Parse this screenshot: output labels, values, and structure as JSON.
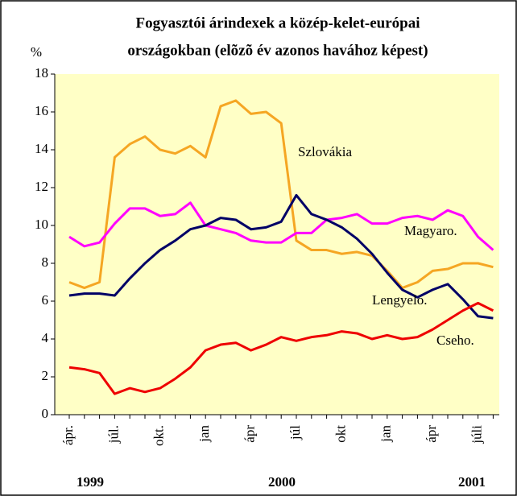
{
  "chart_data": {
    "type": "line",
    "title": [
      "Fogyasztói árindexek a közép-kelet-európai",
      "országokban (elõzõ év azonos havához képest)"
    ],
    "y_label": "%",
    "categories": [
      "ápr.",
      null,
      null,
      "júl.",
      null,
      null,
      "okt.",
      null,
      null,
      "jan",
      null,
      null,
      "ápr",
      null,
      null,
      "júl",
      null,
      null,
      "okt",
      null,
      null,
      "jan",
      null,
      null,
      "ápr",
      null,
      null,
      "júli",
      null
    ],
    "year_labels": [
      "1999",
      "2000",
      "2001"
    ],
    "ylim": [
      0,
      18
    ],
    "yticks": [
      0,
      2,
      4,
      6,
      8,
      10,
      12,
      14,
      16,
      18
    ],
    "series": [
      {
        "name": "Szlovákia",
        "color": "#f5a623",
        "values": [
          7.0,
          6.7,
          7.0,
          13.6,
          14.3,
          14.7,
          14.0,
          13.8,
          14.2,
          13.6,
          16.3,
          16.6,
          15.9,
          16.0,
          15.4,
          9.2,
          8.7,
          8.7,
          8.5,
          8.6,
          8.4,
          7.6,
          6.7,
          7.0,
          7.6,
          7.7,
          8.0,
          8.0,
          7.8
        ]
      },
      {
        "name": "Magyaro.",
        "color": "#ff00ff",
        "values": [
          9.4,
          8.9,
          9.1,
          10.1,
          10.9,
          10.9,
          10.5,
          10.6,
          11.2,
          10.0,
          9.8,
          9.6,
          9.2,
          9.1,
          9.1,
          9.6,
          9.6,
          10.3,
          10.4,
          10.6,
          10.1,
          10.1,
          10.4,
          10.5,
          10.3,
          10.8,
          10.5,
          9.4,
          8.7
        ]
      },
      {
        "name": "Lengyelo.",
        "color": "#000066",
        "values": [
          6.3,
          6.4,
          6.4,
          6.3,
          7.2,
          8.0,
          8.7,
          9.2,
          9.8,
          10.0,
          10.4,
          10.3,
          9.8,
          9.9,
          10.2,
          11.6,
          10.6,
          10.3,
          9.9,
          9.3,
          8.5,
          7.5,
          6.6,
          6.2,
          6.6,
          6.9,
          6.1,
          5.2,
          5.1
        ]
      },
      {
        "name": "Cseho.",
        "color": "#ee0000",
        "values": [
          2.5,
          2.4,
          2.2,
          1.1,
          1.4,
          1.2,
          1.4,
          1.9,
          2.5,
          3.4,
          3.7,
          3.8,
          3.4,
          3.7,
          4.1,
          3.9,
          4.1,
          4.2,
          4.4,
          4.3,
          4.0,
          4.2,
          4.0,
          4.1,
          4.5,
          5.0,
          5.5,
          5.9,
          5.5
        ]
      }
    ]
  }
}
